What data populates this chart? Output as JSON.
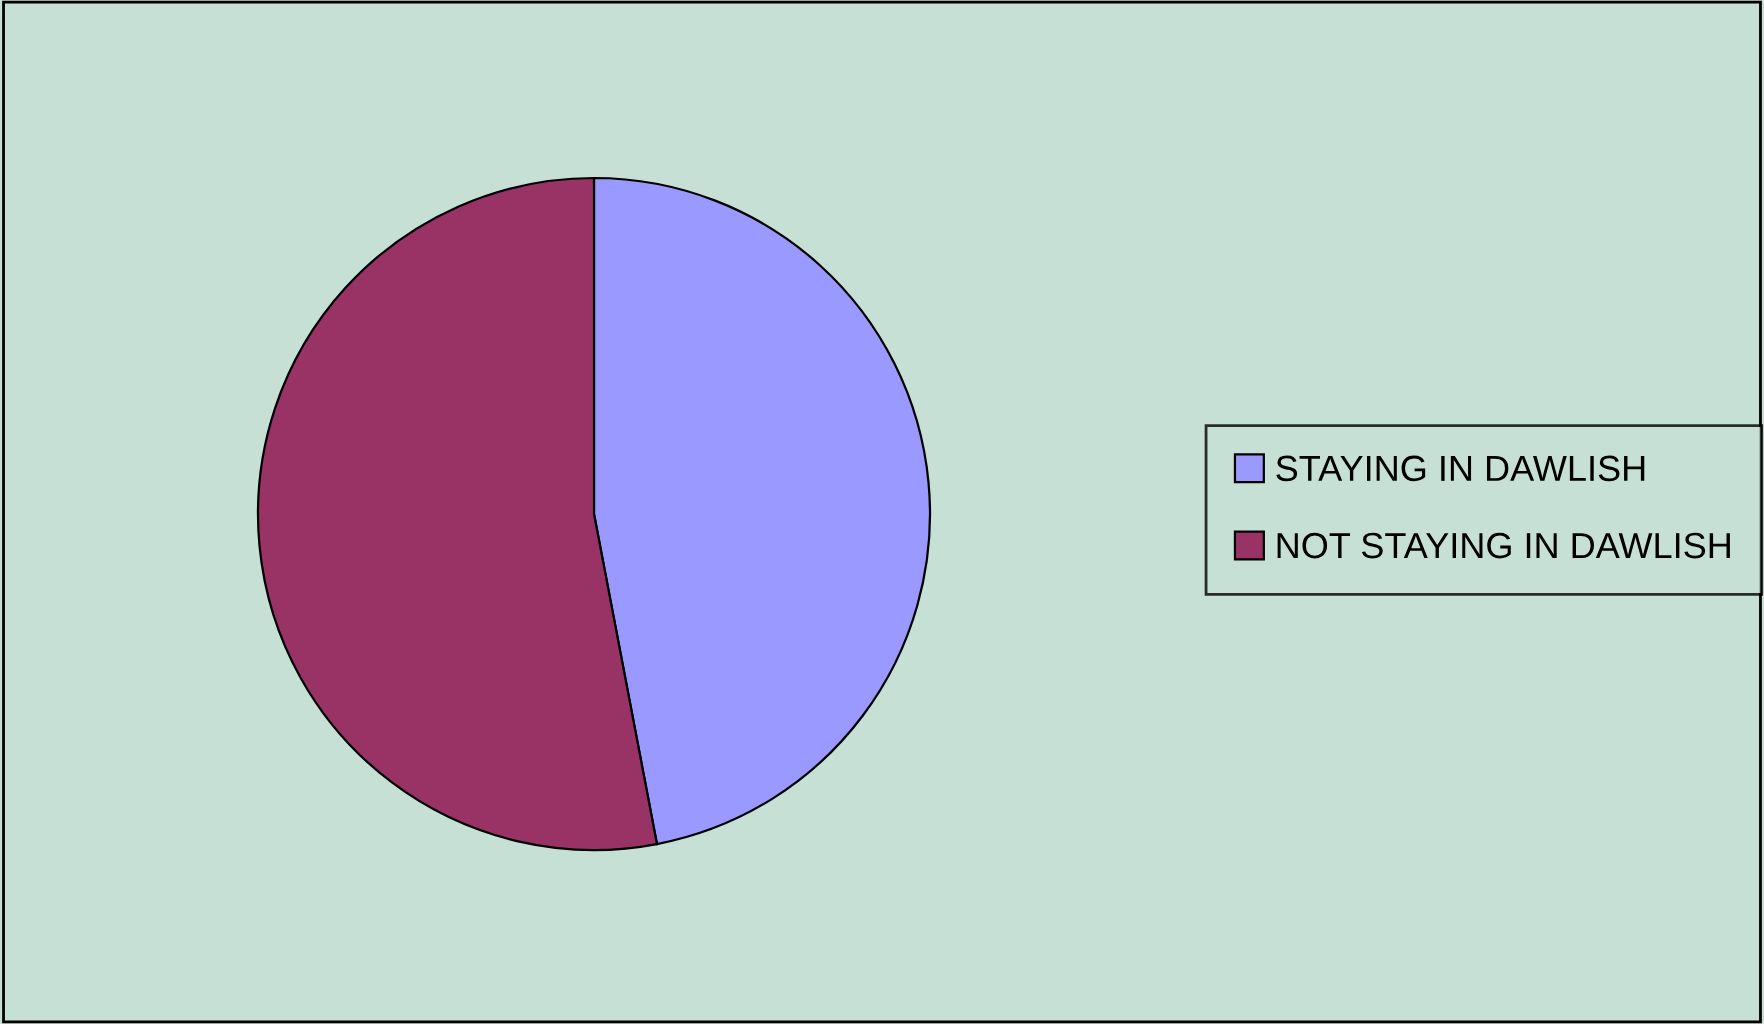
{
  "chart_data": {
    "type": "pie",
    "categories": [
      "STAYING IN DAWLISH",
      "NOT STAYING IN DAWLISH"
    ],
    "values": [
      47,
      53
    ],
    "colors": [
      "#9999ff",
      "#993366"
    ],
    "legend": "right"
  }
}
